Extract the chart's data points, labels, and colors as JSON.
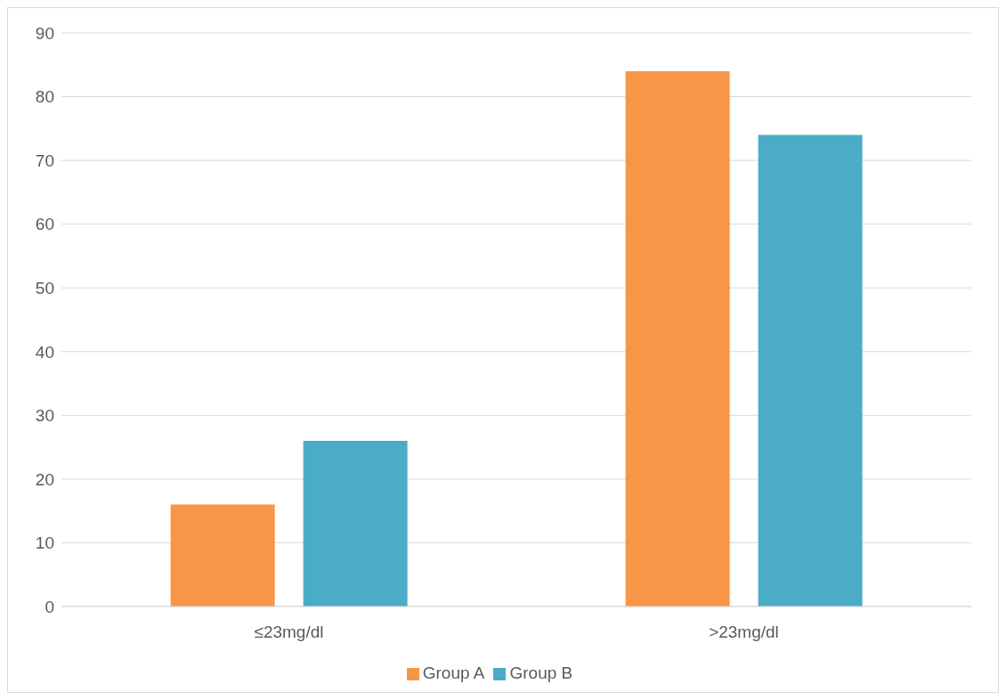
{
  "chart_data": {
    "type": "bar",
    "categories": [
      "≤23mg/dl",
      ">23mg/dl"
    ],
    "series": [
      {
        "name": "Group A",
        "color": "#f79646",
        "values": [
          16,
          84
        ]
      },
      {
        "name": "Group B",
        "color": "#4bacc6",
        "values": [
          26,
          74
        ]
      }
    ],
    "ylim": [
      0,
      90
    ],
    "yticks": [
      0,
      10,
      20,
      30,
      40,
      50,
      60,
      70,
      80,
      90
    ],
    "grid": "y",
    "legend": "bottom"
  }
}
